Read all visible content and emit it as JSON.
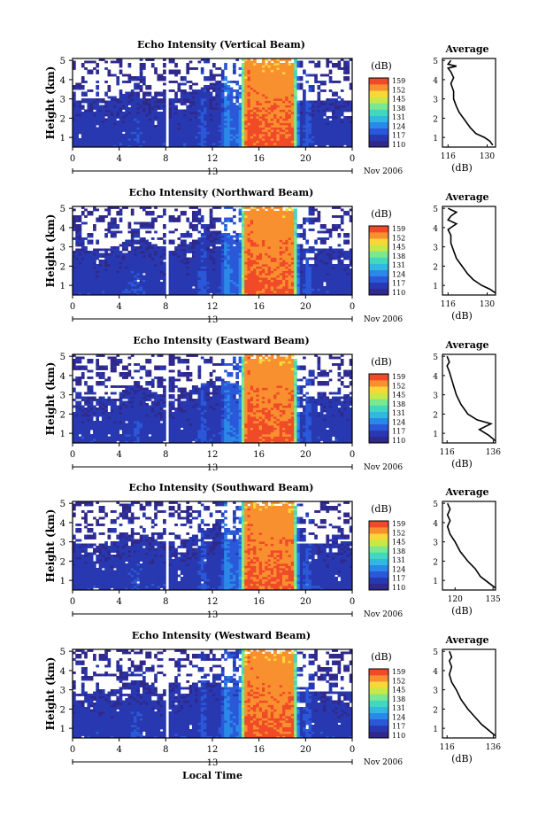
{
  "figure": {
    "xlabel": "Local Time",
    "date_label": "Nov 2006",
    "colorbar_unit": "(dB)",
    "avg_title": "Average"
  },
  "chart_data": [
    {
      "type": "heatmap",
      "title": "Echo Intensity (Vertical Beam)",
      "ylabel": "Height (km)",
      "xlabel": "",
      "x_ticks": [
        "0",
        "4",
        "8",
        "12",
        "16",
        "20",
        "0"
      ],
      "day_label": "13",
      "ylim": [
        0.5,
        5.1
      ],
      "xlim": [
        0,
        24
      ],
      "y_ticks": [
        "1",
        "2",
        "3",
        "4",
        "5"
      ],
      "colorbar_ticks": [
        "110",
        "117",
        "124",
        "131",
        "138",
        "145",
        "152",
        "159"
      ],
      "average_profile": {
        "xlabel": "(dB)",
        "x_ticks": [
          "116",
          "130"
        ],
        "xlim": [
          114,
          133
        ],
        "y_ticks": [
          "1",
          "2",
          "3",
          "4",
          "5"
        ],
        "values": [
          [
            132,
            0.6
          ],
          [
            131,
            0.8
          ],
          [
            129,
            1.0
          ],
          [
            126,
            1.2
          ],
          [
            124,
            1.5
          ],
          [
            122,
            1.9
          ],
          [
            120,
            2.3
          ],
          [
            119,
            2.6
          ],
          [
            118,
            3.0
          ],
          [
            118,
            3.4
          ],
          [
            117,
            3.8
          ],
          [
            118,
            4.1
          ],
          [
            117,
            4.4
          ],
          [
            116,
            4.6
          ],
          [
            119,
            4.7
          ],
          [
            116,
            4.8
          ],
          [
            117,
            5.0
          ]
        ]
      }
    },
    {
      "type": "heatmap",
      "title": "Echo Intensity (Northward Beam)",
      "ylabel": "Height (km)",
      "xlabel": "",
      "x_ticks": [
        "0",
        "4",
        "8",
        "12",
        "16",
        "20",
        "0"
      ],
      "day_label": "13",
      "ylim": [
        0.5,
        5.1
      ],
      "xlim": [
        0,
        24
      ],
      "y_ticks": [
        "1",
        "2",
        "3",
        "4",
        "5"
      ],
      "colorbar_ticks": [
        "110",
        "117",
        "124",
        "131",
        "138",
        "145",
        "152",
        "159"
      ],
      "average_profile": {
        "xlabel": "(dB)",
        "x_ticks": [
          "116",
          "130"
        ],
        "xlim": [
          114,
          133
        ],
        "y_ticks": [
          "1",
          "2",
          "3",
          "4",
          "5"
        ],
        "values": [
          [
            133,
            0.6
          ],
          [
            131,
            0.8
          ],
          [
            128,
            1.0
          ],
          [
            125,
            1.3
          ],
          [
            123,
            1.6
          ],
          [
            121,
            2.0
          ],
          [
            119,
            2.4
          ],
          [
            118,
            2.8
          ],
          [
            117,
            3.2
          ],
          [
            117,
            3.6
          ],
          [
            116,
            3.9
          ],
          [
            119,
            4.2
          ],
          [
            116,
            4.4
          ],
          [
            117,
            4.6
          ],
          [
            119,
            4.8
          ],
          [
            116,
            5.0
          ]
        ]
      }
    },
    {
      "type": "heatmap",
      "title": "Echo Intensity (Eastward Beam)",
      "ylabel": "Height (km)",
      "xlabel": "",
      "x_ticks": [
        "0",
        "4",
        "8",
        "12",
        "16",
        "20",
        "0"
      ],
      "day_label": "13",
      "ylim": [
        0.5,
        5.1
      ],
      "xlim": [
        0,
        24
      ],
      "y_ticks": [
        "1",
        "2",
        "3",
        "4",
        "5"
      ],
      "colorbar_ticks": [
        "110",
        "117",
        "124",
        "131",
        "138",
        "145",
        "152",
        "159"
      ],
      "average_profile": {
        "xlabel": "(dB)",
        "x_ticks": [
          "116",
          "136"
        ],
        "xlim": [
          114,
          137
        ],
        "y_ticks": [
          "1",
          "2",
          "3",
          "4",
          "5"
        ],
        "values": [
          [
            137,
            0.6
          ],
          [
            134,
            0.9
          ],
          [
            130,
            1.2
          ],
          [
            135,
            1.5
          ],
          [
            129,
            1.7
          ],
          [
            125,
            2.0
          ],
          [
            122,
            2.5
          ],
          [
            120,
            3.0
          ],
          [
            119,
            3.4
          ],
          [
            118,
            3.8
          ],
          [
            117,
            4.2
          ],
          [
            116,
            4.5
          ],
          [
            117,
            4.7
          ],
          [
            116,
            5.0
          ]
        ]
      }
    },
    {
      "type": "heatmap",
      "title": "Echo Intensity (Southward Beam)",
      "ylabel": "Height (km)",
      "xlabel": "",
      "x_ticks": [
        "0",
        "4",
        "8",
        "12",
        "16",
        "20",
        "0"
      ],
      "day_label": "13",
      "ylim": [
        0.5,
        5.1
      ],
      "xlim": [
        0,
        24
      ],
      "y_ticks": [
        "1",
        "2",
        "3",
        "4",
        "5"
      ],
      "colorbar_ticks": [
        "110",
        "117",
        "124",
        "131",
        "138",
        "145",
        "152",
        "159"
      ],
      "average_profile": {
        "xlabel": "(dB)",
        "x_ticks": [
          "120",
          "135"
        ],
        "xlim": [
          115,
          136
        ],
        "y_ticks": [
          "1",
          "2",
          "3",
          "4",
          "5"
        ],
        "values": [
          [
            136,
            0.6
          ],
          [
            133,
            0.9
          ],
          [
            130,
            1.2
          ],
          [
            128,
            1.6
          ],
          [
            125,
            2.0
          ],
          [
            122,
            2.5
          ],
          [
            120,
            3.0
          ],
          [
            118,
            3.4
          ],
          [
            117,
            3.8
          ],
          [
            118,
            4.1
          ],
          [
            117,
            4.4
          ],
          [
            118,
            4.7
          ],
          [
            117,
            5.0
          ]
        ]
      }
    },
    {
      "type": "heatmap",
      "title": "Echo Intensity (Westward Beam)",
      "ylabel": "Height (km)",
      "xlabel": "",
      "x_ticks": [
        "0",
        "4",
        "8",
        "12",
        "16",
        "20",
        "0"
      ],
      "day_label": "13",
      "ylim": [
        0.5,
        5.1
      ],
      "xlim": [
        0,
        24
      ],
      "y_ticks": [
        "1",
        "2",
        "3",
        "4",
        "5"
      ],
      "colorbar_ticks": [
        "110",
        "117",
        "124",
        "131",
        "138",
        "145",
        "152",
        "159"
      ],
      "average_profile": {
        "xlabel": "(dB)",
        "x_ticks": [
          "116",
          "136"
        ],
        "xlim": [
          114,
          137
        ],
        "y_ticks": [
          "1",
          "2",
          "3",
          "4",
          "5"
        ],
        "values": [
          [
            137,
            0.6
          ],
          [
            134,
            0.9
          ],
          [
            131,
            1.2
          ],
          [
            128,
            1.6
          ],
          [
            125,
            2.0
          ],
          [
            122,
            2.5
          ],
          [
            120,
            3.0
          ],
          [
            118,
            3.4
          ],
          [
            117,
            3.8
          ],
          [
            118,
            4.2
          ],
          [
            117,
            4.5
          ],
          [
            118,
            4.7
          ],
          [
            117,
            5.0
          ]
        ]
      }
    }
  ],
  "colormap": [
    "#30288a",
    "#2838b0",
    "#2a58d8",
    "#2a88e8",
    "#32b8e0",
    "#42d8c0",
    "#7ae890",
    "#c8e848",
    "#f8d838",
    "#f89030",
    "#f04a28"
  ]
}
